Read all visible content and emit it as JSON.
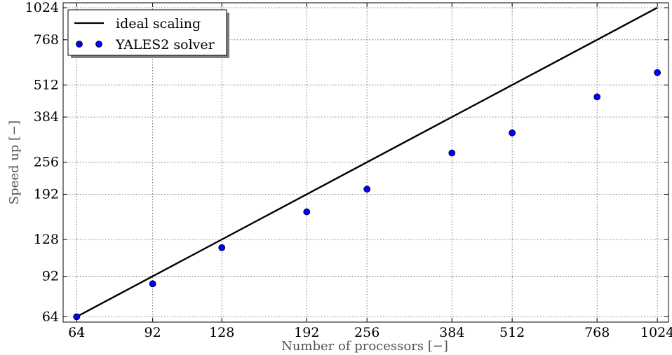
{
  "chart_data": {
    "type": "scatter",
    "title": "",
    "xlabel": "Number of processors [−]",
    "ylabel": "Speed up [−]",
    "x_scale": "log2",
    "y_scale": "log2",
    "xlim": [
      60,
      1080
    ],
    "ylim": [
      61,
      1070
    ],
    "x_ticks": [
      64,
      92,
      128,
      192,
      256,
      384,
      512,
      768,
      1024
    ],
    "y_ticks": [
      64,
      92,
      128,
      192,
      256,
      384,
      512,
      768,
      1024
    ],
    "x_tick_labels": [
      "64",
      "92",
      "128",
      "192",
      "256",
      "384",
      "512",
      "768",
      "1024"
    ],
    "y_tick_labels": [
      "64",
      "92",
      "128",
      "192",
      "256",
      "384",
      "512",
      "768",
      "1024"
    ],
    "grid": true,
    "legend_position": "top-left",
    "series": [
      {
        "name": "ideal scaling",
        "kind": "line",
        "color": "#000000",
        "x": [
          64,
          1024
        ],
        "y": [
          64,
          1024
        ]
      },
      {
        "name": "YALES2 solver",
        "kind": "scatter",
        "color": "#0000ff",
        "x": [
          64,
          92,
          128,
          192,
          256,
          384,
          512,
          768,
          1024
        ],
        "y": [
          64,
          86,
          119,
          164,
          201,
          278,
          333,
          460,
          572
        ]
      }
    ]
  }
}
